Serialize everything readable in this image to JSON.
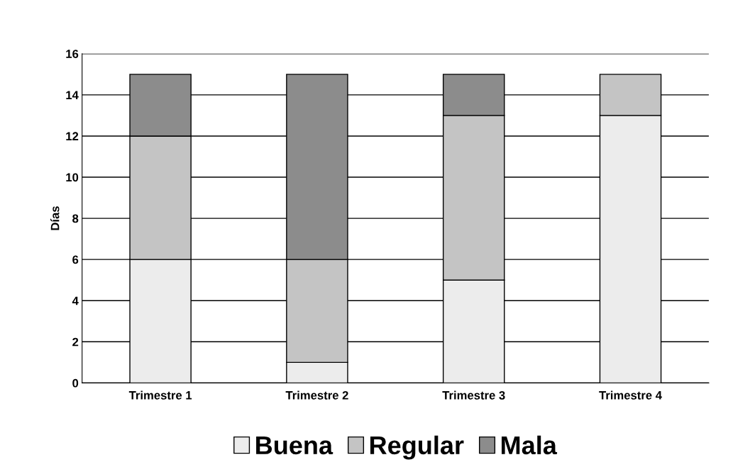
{
  "chart_data": {
    "type": "bar",
    "stacked": true,
    "ylabel": "Días",
    "categories": [
      "Trimestre 1",
      "Trimestre 2",
      "Trimestre 3",
      "Trimestre 4"
    ],
    "series": [
      {
        "name": "Buena",
        "color": "#ececec",
        "values": [
          6,
          1,
          5,
          13
        ]
      },
      {
        "name": "Regular",
        "color": "#c4c4c4",
        "values": [
          6,
          5,
          8,
          2
        ]
      },
      {
        "name": "Mala",
        "color": "#8c8c8c",
        "values": [
          3,
          9,
          2,
          null
        ]
      }
    ],
    "ylim": [
      0,
      16
    ],
    "yticks": [
      0,
      2,
      4,
      6,
      8,
      10,
      12,
      14,
      16
    ],
    "grid": "y",
    "legend": "bottom"
  }
}
